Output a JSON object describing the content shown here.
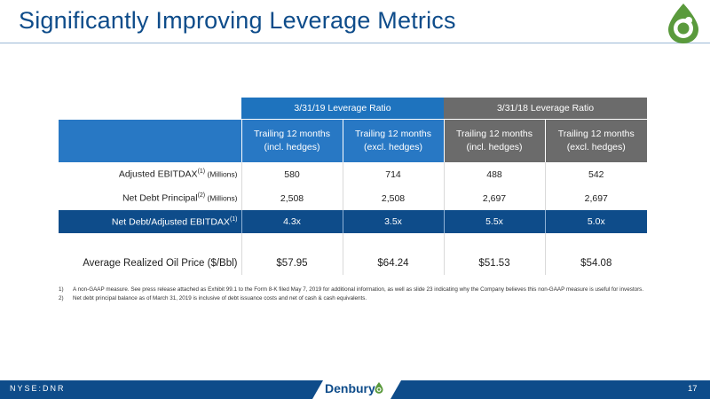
{
  "slide": {
    "title": "Significantly Improving Leverage Metrics",
    "page_number": "17",
    "ticker": "NYSE:DNR",
    "brand": "Denbury"
  },
  "table": {
    "groups": [
      "3/31/19 Leverage Ratio",
      "3/31/18 Leverage Ratio"
    ],
    "subheaders": [
      [
        "Trailing 12 months",
        "(incl. hedges)"
      ],
      [
        "Trailing 12 months",
        "(excl. hedges)"
      ],
      [
        "Trailing 12 months",
        "(incl. hedges)"
      ],
      [
        "Trailing 12 months",
        "(excl. hedges)"
      ]
    ],
    "rows": [
      {
        "label": "Adjusted EBITDAX",
        "sup": "(1)",
        "unit": " (Millions)",
        "values": [
          "580",
          "714",
          "488",
          "542"
        ]
      },
      {
        "label": "Net Debt Principal",
        "sup": "(2)",
        "unit": " (Millions)",
        "values": [
          "2,508",
          "2,508",
          "2,697",
          "2,697"
        ]
      },
      {
        "label": "Net Debt/Adjusted EBITDAX",
        "sup": "(1)",
        "unit": "",
        "values": [
          "4.3x",
          "3.5x",
          "5.5x",
          "5.0x"
        ]
      },
      {
        "label": "",
        "sup": "",
        "unit": "",
        "values": [
          "",
          "",
          "",
          ""
        ]
      },
      {
        "label": "Average Realized Oil Price ($/Bbl)",
        "sup": "",
        "unit": "",
        "values": [
          "$57.95",
          "$64.24",
          "$51.53",
          "$54.08"
        ]
      }
    ]
  },
  "notes": [
    {
      "num": "1)",
      "text": "A non-GAAP measure. See press release attached as Exhibit 99.1 to the Form 8-K filed May 7, 2019 for additional information, as well as slide 23 indicating why the Company believes this non-GAAP measure is useful for investors."
    },
    {
      "num": "2)",
      "text": "Net debt principal balance as of March 31, 2019 is inclusive of debt issuance costs and net of cash & cash equivalents."
    }
  ],
  "colors": {
    "brand_blue": "#0e4c8a",
    "header_blue": "#1e73be",
    "header_gray": "#6b6b6b",
    "logo_green": "#5a9a3c"
  },
  "icons": [
    "denbury-drop-logo-icon",
    "denbury-drop-small-icon"
  ]
}
